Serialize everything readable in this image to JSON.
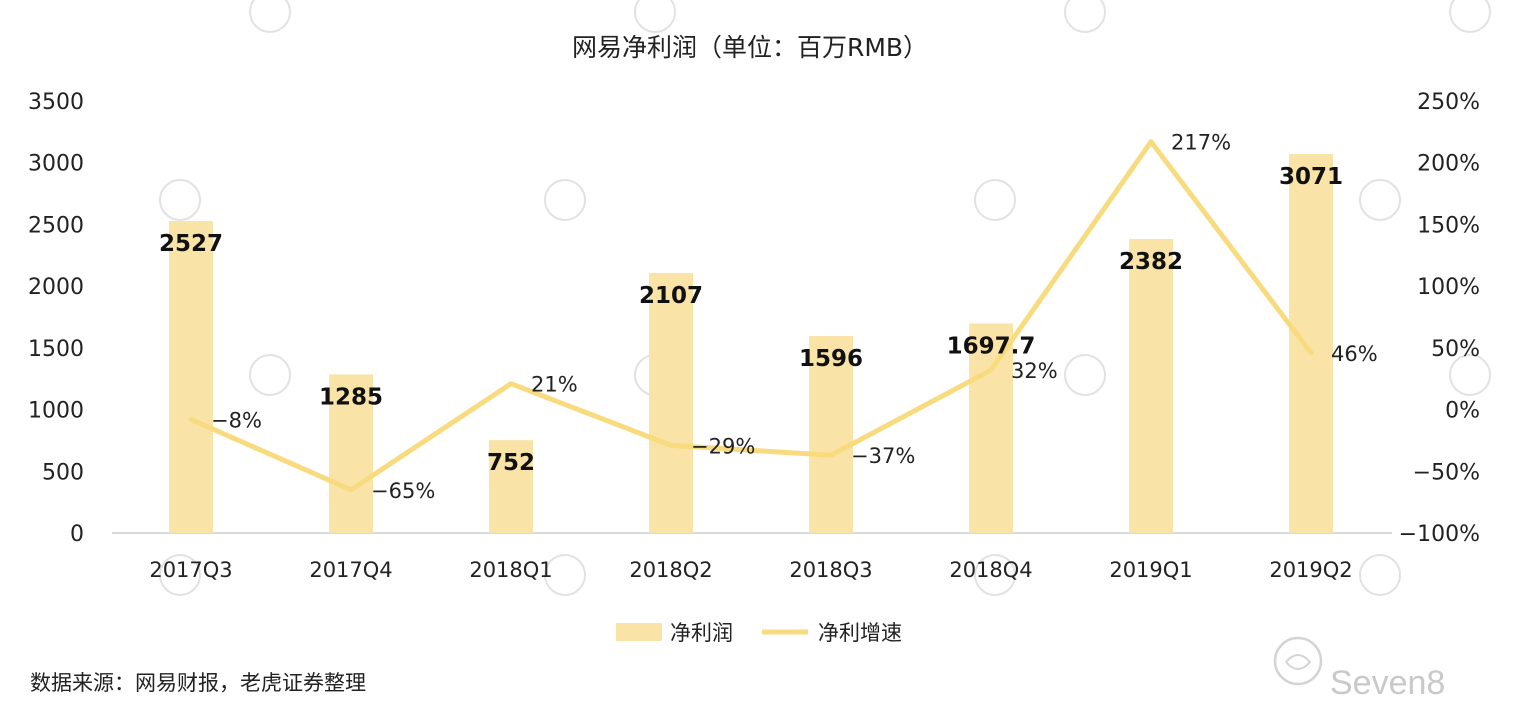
{
  "chart_data": {
    "type": "bar",
    "title": "网易净利润（单位：百万RMB）",
    "categories": [
      "2017Q3",
      "2017Q4",
      "2018Q1",
      "2018Q2",
      "2018Q3",
      "2018Q4",
      "2019Q1",
      "2019Q2"
    ],
    "series": [
      {
        "name": "净利润",
        "type": "bar",
        "axis": "left",
        "values": [
          2527,
          1285,
          752,
          2107,
          1596,
          1697.7,
          2382,
          3071
        ],
        "labels": [
          "2527",
          "1285",
          "752",
          "2107",
          "1596",
          "1697.7",
          "2382",
          "3071"
        ],
        "color": "#f9e3a7"
      },
      {
        "name": "净利增速",
        "type": "line",
        "axis": "right",
        "values": [
          -8,
          -65,
          21,
          -29,
          -37,
          32,
          217,
          46
        ],
        "labels": [
          "−8%",
          "−65%",
          "21%",
          "−29%",
          "−37%",
          "32%",
          "217%",
          "46%"
        ],
        "color": "#f9db7f"
      }
    ],
    "y_left": {
      "ylim": [
        0,
        3500
      ],
      "ticks": [
        "0",
        "500",
        "1000",
        "1500",
        "2000",
        "2500",
        "3000",
        "3500"
      ]
    },
    "y_right": {
      "ylim": [
        -100,
        250
      ],
      "ticks": [
        "−100%",
        "−50%",
        "0%",
        "50%",
        "100%",
        "150%",
        "200%",
        "250%"
      ]
    },
    "grid": false,
    "legend": "bottom-center"
  },
  "source_note": "数据来源：网易财报，老虎证券整理",
  "watermark": "Seven8"
}
